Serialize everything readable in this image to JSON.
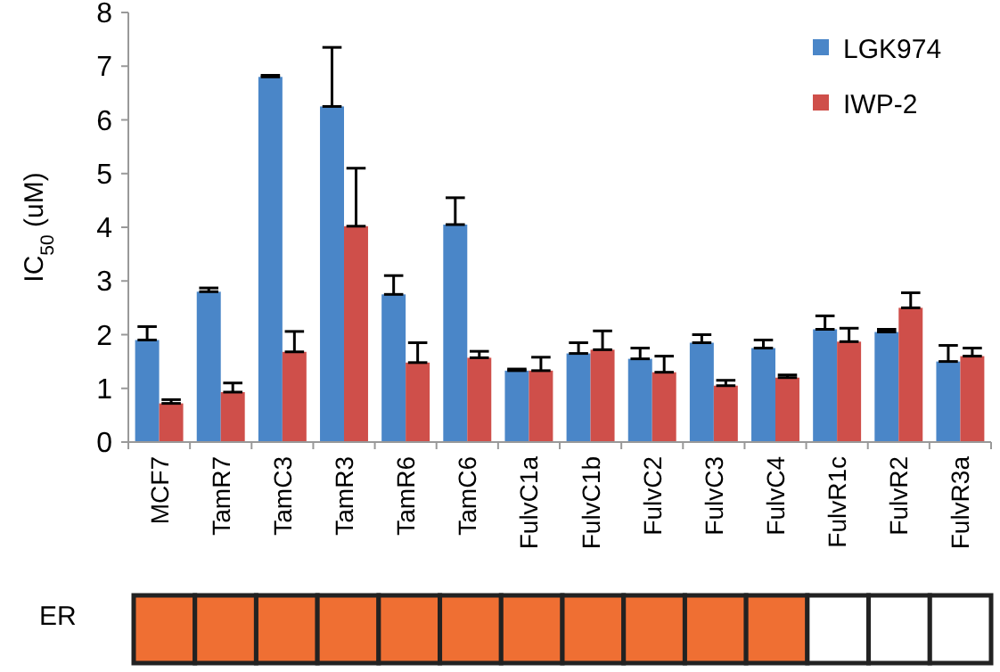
{
  "chart_data": [
    {
      "type": "bar",
      "ylabel": "IC$_{50}$ (uM)",
      "categories": [
        "MCF7",
        "TamR7",
        "TamC3",
        "TamR3",
        "TamR6",
        "TamC6",
        "FulvC1a",
        "FulvC1b",
        "FulvC2",
        "FulvC3",
        "FulvC4",
        "FulvR1c",
        "FulvR2",
        "FulvR3a"
      ],
      "series": [
        {
          "name": "LGK974",
          "color": "#4a86c8",
          "values": [
            1.9,
            2.8,
            6.8,
            6.25,
            2.75,
            4.05,
            1.33,
            1.65,
            1.55,
            1.85,
            1.75,
            2.1,
            2.05,
            1.5
          ],
          "errors": [
            [
              1.9,
              2.15
            ],
            [
              2.8,
              2.87
            ],
            [
              6.8,
              6.83
            ],
            [
              6.25,
              7.35
            ],
            [
              2.75,
              3.1
            ],
            [
              4.05,
              4.55
            ],
            [
              1.33,
              1.36
            ],
            [
              1.65,
              1.85
            ],
            [
              1.55,
              1.75
            ],
            [
              1.85,
              2.0
            ],
            [
              1.75,
              1.9
            ],
            [
              2.1,
              2.35
            ],
            [
              2.05,
              2.1
            ],
            [
              1.5,
              1.8
            ]
          ]
        },
        {
          "name": "IWP-2",
          "color": "#cf4f4a",
          "values": [
            0.72,
            0.93,
            1.68,
            4.02,
            1.48,
            1.57,
            1.33,
            1.72,
            1.3,
            1.05,
            1.2,
            1.87,
            2.5,
            1.6
          ],
          "errors": [
            [
              0.72,
              0.79
            ],
            [
              0.93,
              1.1
            ],
            [
              1.68,
              2.06
            ],
            [
              4.02,
              5.1
            ],
            [
              1.48,
              1.85
            ],
            [
              1.57,
              1.69
            ],
            [
              1.33,
              1.58
            ],
            [
              1.72,
              2.07
            ],
            [
              1.3,
              1.6
            ],
            [
              1.05,
              1.15
            ],
            [
              1.2,
              1.25
            ],
            [
              1.87,
              2.12
            ],
            [
              2.5,
              2.78
            ],
            [
              1.6,
              1.75
            ]
          ]
        }
      ],
      "ylim": [
        0,
        8
      ],
      "yticks": [
        0,
        1,
        2,
        3,
        4,
        5,
        6,
        7,
        8
      ],
      "legend": "top right"
    },
    {
      "type": "other",
      "title": "ER",
      "colors": [
        "#ef6f33",
        "#ef6f33",
        "#ef6f33",
        "#ef6f33",
        "#ef6f33",
        "#ef6f33",
        "#ef6f33",
        "#ef6f33",
        "#ef6f33",
        "#ef6f33",
        "#ef6f33",
        "#ffffff",
        "#ffffff",
        "#ffffff"
      ]
    }
  ]
}
